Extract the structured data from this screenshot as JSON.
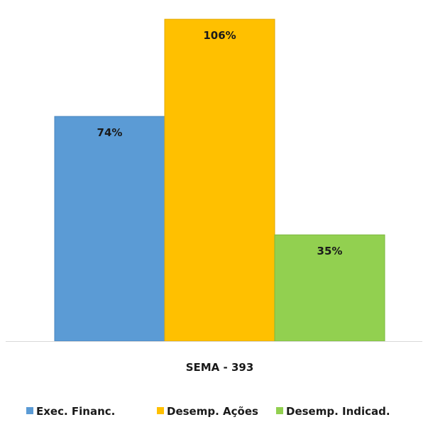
{
  "chart_data": {
    "type": "bar",
    "categories": [
      "SEMA - 393"
    ],
    "series": [
      {
        "name": "Exec. Financ.",
        "values": [
          74
        ],
        "labels": [
          "74%"
        ],
        "color": "#5B9BD5",
        "stroke": "#4A86BE"
      },
      {
        "name": "Desemp. Ações",
        "values": [
          106
        ],
        "labels": [
          "106%"
        ],
        "color": "#FFC000",
        "stroke": "#E0A800"
      },
      {
        "name": "Desemp. Indicad.",
        "values": [
          35
        ],
        "labels": [
          "35%"
        ],
        "color": "#92D050",
        "stroke": "#7CB83E"
      }
    ],
    "ylim": [
      0,
      110
    ],
    "grid": false,
    "legend_position": "bottom"
  }
}
